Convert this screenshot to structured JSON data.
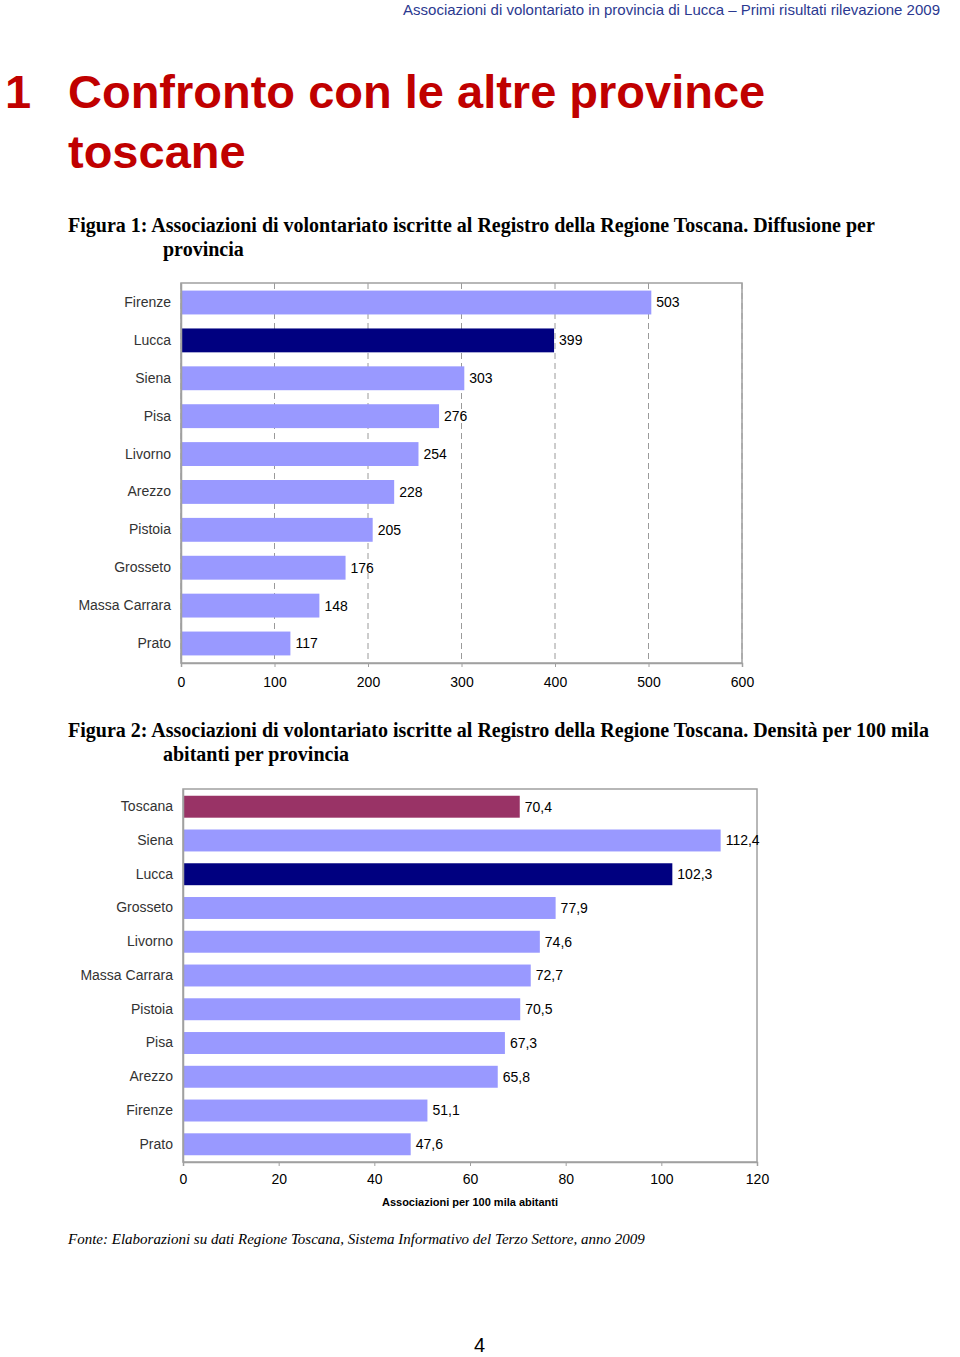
{
  "header": "Associazioni di volontariato in provincia di Lucca – Primi risultati rilevazione 2009",
  "section_number": "1",
  "section_title": "Confronto con le altre province toscane",
  "chart_data": [
    {
      "type": "bar",
      "orientation": "horizontal",
      "title": "Figura 1: Associazioni di volontariato iscritte al Registro della Regione Toscana. Diffusione per provincia",
      "categories": [
        "Firenze",
        "Lucca",
        "Siena",
        "Pisa",
        "Livorno",
        "Arezzo",
        "Pistoia",
        "Grosseto",
        "Massa Carrara",
        "Prato"
      ],
      "values": [
        503,
        399,
        303,
        276,
        254,
        228,
        205,
        176,
        148,
        117
      ],
      "colors": [
        "#9999ff",
        "#000080",
        "#9999ff",
        "#9999ff",
        "#9999ff",
        "#9999ff",
        "#9999ff",
        "#9999ff",
        "#9999ff",
        "#9999ff"
      ],
      "xlim": [
        0,
        600
      ],
      "xticks": [
        0,
        100,
        200,
        300,
        400,
        500,
        600
      ],
      "grid": true,
      "data_labels": true
    },
    {
      "type": "bar",
      "orientation": "horizontal",
      "title": "Figura 2: Associazioni di volontariato iscritte al Registro della Regione Toscana. Densità per 100 mila abitanti per provincia",
      "x_label": "Associazioni per 100 mila abitanti",
      "categories": [
        "Toscana",
        "Siena",
        "Lucca",
        "Grosseto",
        "Livorno",
        "Massa Carrara",
        "Pistoia",
        "Pisa",
        "Arezzo",
        "Firenze",
        "Prato"
      ],
      "values": [
        70.4,
        112.4,
        102.3,
        77.9,
        74.6,
        72.7,
        70.5,
        67.3,
        65.8,
        51.1,
        47.6
      ],
      "value_labels": [
        "70,4",
        "112,4",
        "102,3",
        "77,9",
        "74,6",
        "72,7",
        "70,5",
        "67,3",
        "65,8",
        "51,1",
        "47,6"
      ],
      "colors": [
        "#993366",
        "#9999ff",
        "#000080",
        "#9999ff",
        "#9999ff",
        "#9999ff",
        "#9999ff",
        "#9999ff",
        "#9999ff",
        "#9999ff",
        "#9999ff"
      ],
      "xlim": [
        0,
        120
      ],
      "xticks": [
        0,
        20,
        40,
        60,
        80,
        100,
        120
      ],
      "grid": false,
      "data_labels": true
    }
  ],
  "source": "Fonte: Elaborazioni su dati Regione Toscana, Sistema Informativo del Terzo Settore, anno 2009",
  "page_number": "4"
}
